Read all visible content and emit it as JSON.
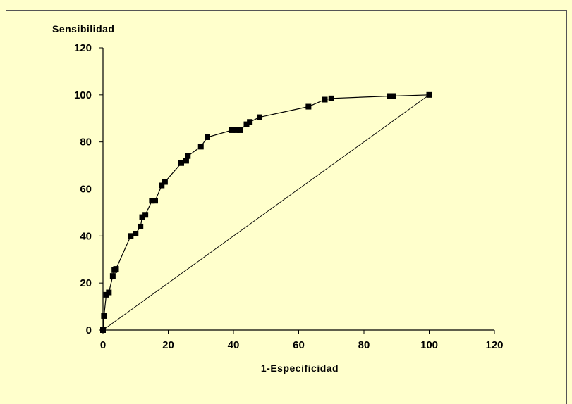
{
  "colors": {
    "background": "#ffffcc",
    "ink": "#000000"
  },
  "chart_data": {
    "type": "line",
    "title": "",
    "ylabel": "Sensibilidad",
    "xlabel": "1-Especificidad",
    "xlim": [
      0,
      120
    ],
    "ylim": [
      0,
      120
    ],
    "x_ticks": [
      0,
      20,
      40,
      60,
      80,
      100,
      120
    ],
    "y_ticks": [
      0,
      20,
      40,
      60,
      80,
      100,
      120
    ],
    "grid": false,
    "legend": "none",
    "series": [
      {
        "marker": "square",
        "x": [
          0,
          0.3,
          1,
          1.8,
          3,
          3.5,
          4,
          8.5,
          10,
          11.5,
          12,
          13,
          15,
          16,
          18,
          19,
          24,
          25.5,
          26,
          30,
          32,
          39.5,
          41,
          42,
          44,
          45,
          48,
          63,
          68,
          70,
          88,
          89,
          100
        ],
        "y": [
          0,
          6,
          15,
          16,
          23,
          25.5,
          26,
          40,
          41,
          44,
          48,
          49,
          55,
          55,
          61.5,
          63,
          71,
          72,
          74,
          78,
          82,
          85,
          85,
          85,
          87.5,
          88.5,
          90.5,
          95,
          98,
          98.5,
          99.5,
          99.5,
          100
        ]
      },
      {
        "marker": "none",
        "x": [
          0,
          100
        ],
        "y": [
          0,
          100
        ]
      }
    ]
  }
}
